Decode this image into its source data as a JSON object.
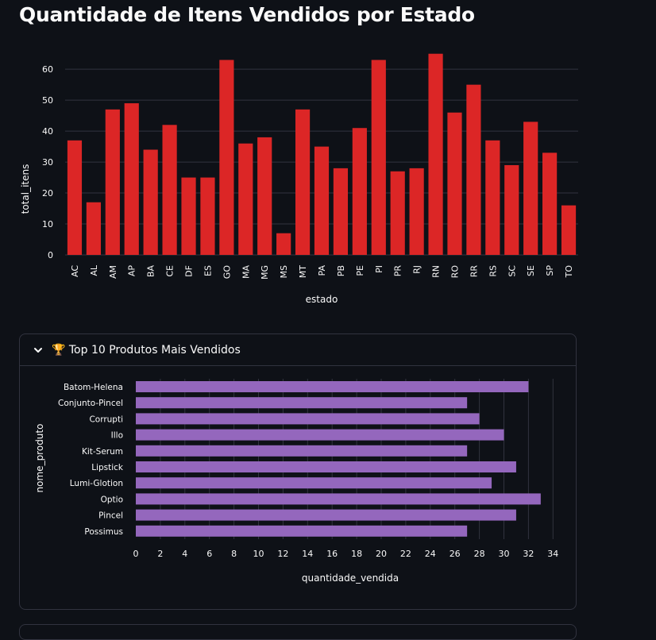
{
  "page": {
    "title": "Quantidade de Itens Vendidos por Estado"
  },
  "colors": {
    "background": "#0e1117",
    "bar_states": "#dc2626",
    "bar_products": "#9467bd",
    "grid": "#31333f",
    "text": "#fafafa"
  },
  "expander": {
    "icon": "trophy-icon",
    "title": "🏆 Top 10 Produtos Mais Vendidos",
    "expanded": true
  },
  "chart_data": [
    {
      "type": "bar",
      "categories": [
        "AC",
        "AL",
        "AM",
        "AP",
        "BA",
        "CE",
        "DF",
        "ES",
        "GO",
        "MA",
        "MG",
        "MS",
        "MT",
        "PA",
        "PB",
        "PE",
        "PI",
        "PR",
        "RJ",
        "RN",
        "RO",
        "RR",
        "RS",
        "SC",
        "SE",
        "SP",
        "TO"
      ],
      "values": [
        37,
        17,
        47,
        49,
        34,
        42,
        25,
        25,
        63,
        36,
        38,
        7,
        47,
        35,
        28,
        41,
        63,
        27,
        28,
        65,
        46,
        55,
        37,
        29,
        43,
        33,
        16
      ],
      "xlabel": "estado",
      "ylabel": "total_itens",
      "ylim": [
        0,
        68
      ],
      "yticks": [
        0,
        10,
        20,
        30,
        40,
        50,
        60
      ],
      "grid": true,
      "color": "#dc2626"
    },
    {
      "type": "bar",
      "orientation": "horizontal",
      "categories": [
        "Batom-Helena",
        "Conjunto-Pincel",
        "Corrupti",
        "Illo",
        "Kit-Serum",
        "Lipstick",
        "Lumi-Glotion",
        "Optio",
        "Pincel",
        "Possimus"
      ],
      "values": [
        32,
        27,
        28,
        30,
        27,
        31,
        29,
        33,
        31,
        27
      ],
      "xlabel": "quantidade_vendida",
      "ylabel": "nome_produto",
      "xlim": [
        0,
        35
      ],
      "xticks": [
        0,
        2,
        4,
        6,
        8,
        10,
        12,
        14,
        16,
        18,
        20,
        22,
        24,
        26,
        28,
        30,
        32,
        34
      ],
      "grid": true,
      "color": "#9467bd"
    }
  ]
}
